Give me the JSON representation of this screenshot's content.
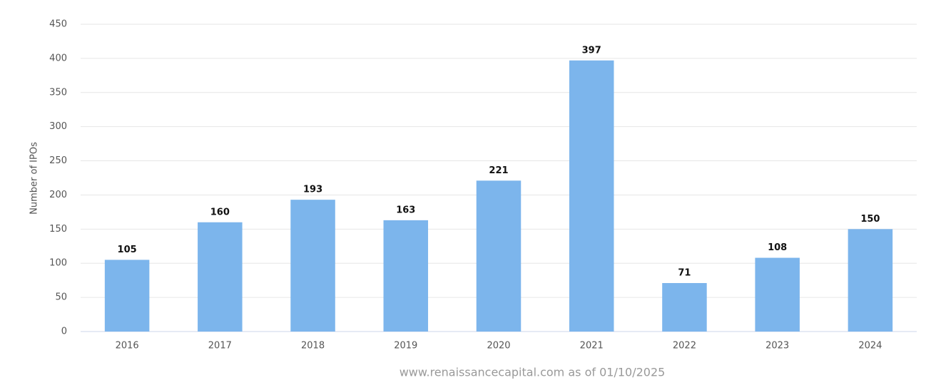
{
  "chart_data": {
    "type": "bar",
    "y_label": "Number of IPOs",
    "source": "www.renaissancecapital.com as of 01/10/2025",
    "categories": [
      "2016",
      "2017",
      "2018",
      "2019",
      "2020",
      "2021",
      "2022",
      "2023",
      "2024"
    ],
    "values": [
      105,
      160,
      193,
      163,
      221,
      397,
      71,
      108,
      150
    ],
    "color": "#7cb5ec",
    "ylim": [
      0,
      450
    ],
    "yticks": [
      0,
      50,
      100,
      150,
      200,
      250,
      300,
      350,
      400,
      450
    ],
    "grid": true,
    "data_labels": true
  }
}
